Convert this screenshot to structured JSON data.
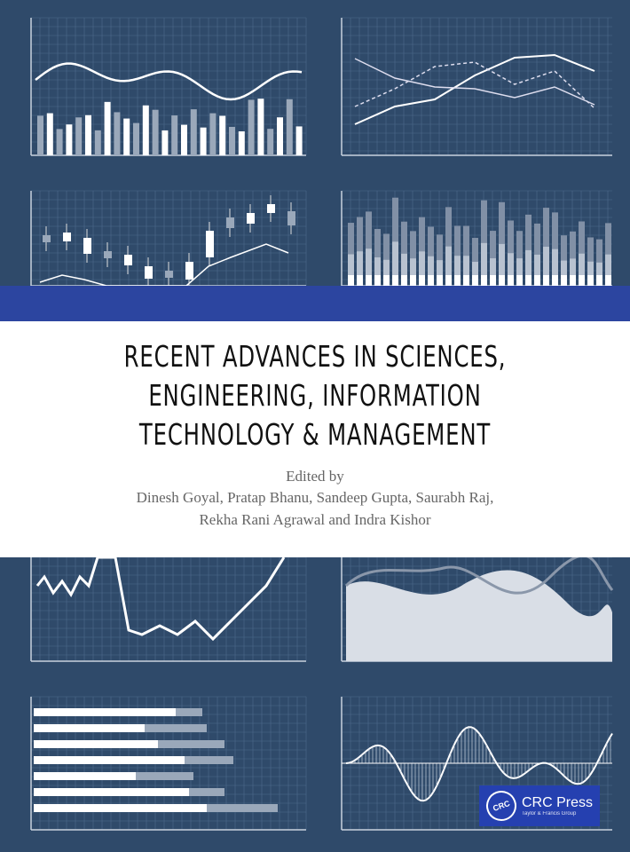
{
  "cover": {
    "title_lines": [
      "RECENT ADVANCES IN SCIENCES,",
      "ENGINEERING, INFORMATION",
      "TECHNOLOGY & MANAGEMENT"
    ],
    "edited_by": "Edited by",
    "editors_lines": [
      "Dinesh Goyal, Pratap Bhanu, Sandeep Gupta, Saurabh Raj,",
      "Rekha Rani Agrawal and Indra Kishor"
    ]
  },
  "publisher": {
    "logo_mark": "CRC",
    "name": "CRC Press",
    "tagline": "Taylor & Francis Group"
  },
  "colors": {
    "background": "#2f4a6a",
    "band": "#2c45a0",
    "logo": "#2540b0",
    "chart_line": "#ffffff"
  }
}
